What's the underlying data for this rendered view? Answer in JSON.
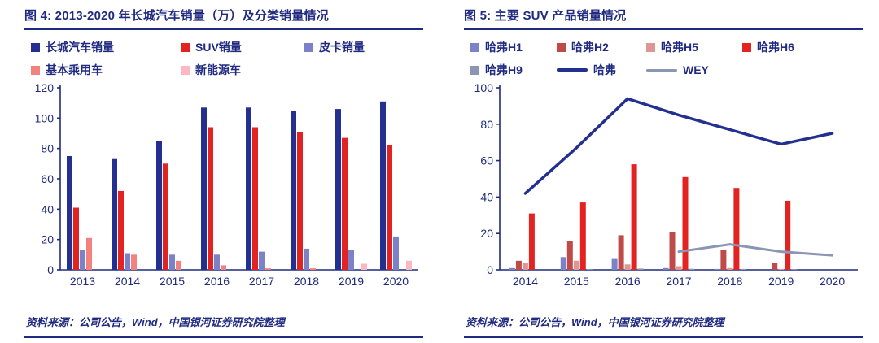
{
  "page": {
    "background": "#ffffff",
    "accent": "#1f2a80"
  },
  "chart_data": [
    {
      "type": "bar",
      "title": "图 4: 2013-2020 年长城汽车销量（万）及分类销量情况",
      "source": "资料来源：公司公告，Wind，中国银河证券研究院整理",
      "categories": [
        "2013",
        "2014",
        "2015",
        "2016",
        "2017",
        "2018",
        "2019",
        "2020"
      ],
      "series": [
        {
          "name": "长城汽车销量",
          "type": "bar",
          "color": "#24308f",
          "values": [
            75,
            73,
            85,
            107,
            107,
            105,
            106,
            111
          ]
        },
        {
          "name": "SUV销量",
          "type": "bar",
          "color": "#e32322",
          "values": [
            41,
            52,
            70,
            94,
            94,
            91,
            87,
            82
          ]
        },
        {
          "name": "皮卡销量",
          "type": "bar",
          "color": "#7c82c8",
          "values": [
            13,
            11,
            10,
            10,
            12,
            14,
            13,
            22
          ]
        },
        {
          "name": "基本乘用车",
          "type": "bar",
          "color": "#f3827f",
          "values": [
            21,
            10,
            6,
            3,
            1,
            1,
            0,
            0
          ]
        },
        {
          "name": "新能源车",
          "type": "bar",
          "color": "#fab8c0",
          "values": [
            0,
            0,
            0,
            0,
            0,
            0,
            4,
            6
          ]
        }
      ],
      "xlabel": "",
      "ylabel": "",
      "ylim": [
        0,
        120
      ],
      "ytick_step": 20,
      "grid": false,
      "legend_position": "top",
      "legend_grid": "180px 148px auto"
    },
    {
      "type": "bar-line",
      "title": "图 5: 主要 SUV 产品销量情况",
      "source": "资料来源：公司公告，Wind，中国银河证券研究院整理",
      "categories": [
        "2014",
        "2015",
        "2016",
        "2017",
        "2018",
        "2019",
        "2020"
      ],
      "series": [
        {
          "name": "哈弗H1",
          "type": "bar",
          "color": "#7c82c8",
          "values": [
            1,
            7,
            6,
            1,
            0.5,
            0,
            0
          ]
        },
        {
          "name": "哈弗H2",
          "type": "bar",
          "color": "#bf4b48",
          "values": [
            5,
            16,
            19,
            21,
            11,
            4,
            0
          ]
        },
        {
          "name": "哈弗H5",
          "type": "bar",
          "color": "#dc9795",
          "values": [
            4,
            5,
            3,
            2,
            1,
            0.5,
            0
          ]
        },
        {
          "name": "哈弗H6",
          "type": "bar",
          "color": "#e32322",
          "values": [
            31,
            37,
            58,
            51,
            45,
            38,
            0
          ]
        },
        {
          "name": "哈弗H9",
          "type": "bar",
          "color": "#8b95b4",
          "values": [
            0,
            0.5,
            0.7,
            0.6,
            0.5,
            0.4,
            0
          ]
        },
        {
          "name": "哈弗",
          "type": "line",
          "color": "#24308f",
          "stroke_width": 3.5,
          "values": [
            42,
            67,
            94,
            85,
            77,
            69,
            75
          ]
        },
        {
          "name": "WEY",
          "type": "line",
          "color": "#8b95b4",
          "stroke_width": 3,
          "values": [
            null,
            null,
            null,
            10,
            14,
            10,
            8
          ]
        }
      ],
      "xlabel": "",
      "ylabel": "",
      "ylim": [
        0,
        100
      ],
      "ytick_step": 20,
      "grid": false,
      "legend_position": "top",
      "legend_grid": "102px 106px 114px auto"
    }
  ]
}
